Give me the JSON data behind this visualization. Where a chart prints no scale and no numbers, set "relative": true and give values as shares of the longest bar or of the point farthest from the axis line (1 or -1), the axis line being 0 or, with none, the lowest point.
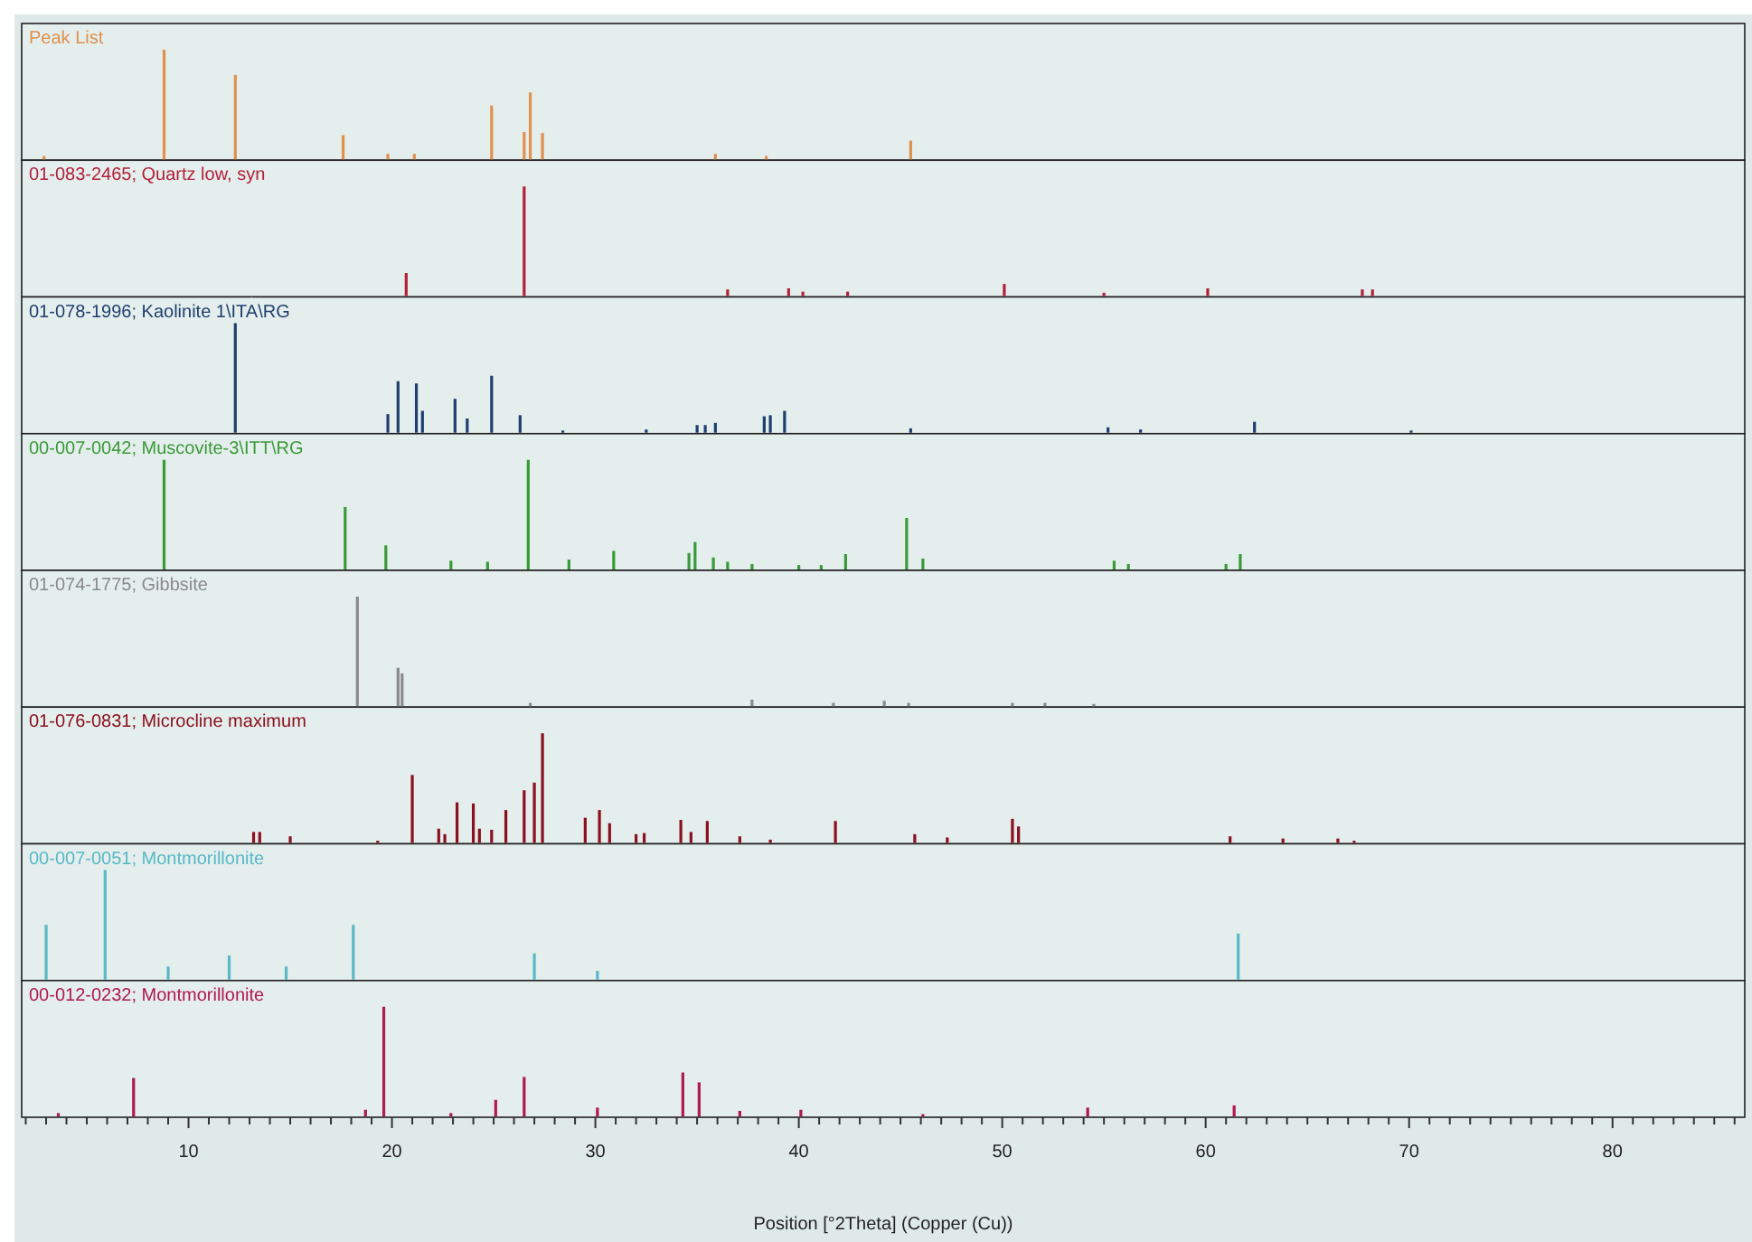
{
  "chart_data": [
    {
      "type": "bar",
      "title": "Peak List",
      "color": "#e0904f",
      "relative": true,
      "xlim": [
        1.8,
        86.5
      ],
      "tick_labels": false,
      "x": [
        2.9,
        8.8,
        12.3,
        17.6,
        19.8,
        21.1,
        24.9,
        26.5,
        26.8,
        27.4,
        35.9,
        38.4,
        45.5
      ],
      "values": [
        0.03,
        1.0,
        0.77,
        0.22,
        0.05,
        0.05,
        0.49,
        0.25,
        0.61,
        0.24,
        0.05,
        0.03,
        0.17
      ]
    },
    {
      "type": "bar",
      "title": "01-083-2465; Quartz low, syn",
      "color": "#b3203c",
      "relative": true,
      "xlim": [
        1.8,
        86.5
      ],
      "tick_labels": false,
      "x": [
        20.7,
        26.5,
        36.5,
        39.5,
        40.2,
        42.4,
        50.1,
        55.0,
        60.1,
        67.7,
        68.2
      ],
      "values": [
        0.21,
        1.0,
        0.06,
        0.07,
        0.04,
        0.04,
        0.11,
        0.03,
        0.07,
        0.06,
        0.06
      ]
    },
    {
      "type": "bar",
      "title": "01-078-1996; Kaolinite 1\\ITA\\RG",
      "color": "#1f3f70",
      "relative": true,
      "xlim": [
        1.8,
        86.5
      ],
      "tick_labels": false,
      "x": [
        12.3,
        19.8,
        20.3,
        21.2,
        21.5,
        23.1,
        23.7,
        24.9,
        26.3,
        28.4,
        32.5,
        35.0,
        35.4,
        35.9,
        38.3,
        38.6,
        39.3,
        45.5,
        55.2,
        56.8,
        62.4,
        70.1
      ],
      "values": [
        1.0,
        0.17,
        0.47,
        0.45,
        0.2,
        0.31,
        0.13,
        0.52,
        0.16,
        0.02,
        0.03,
        0.07,
        0.07,
        0.09,
        0.15,
        0.16,
        0.2,
        0.04,
        0.05,
        0.03,
        0.1,
        0.02
      ]
    },
    {
      "type": "bar",
      "title": "00-007-0042; Muscovite-3\\ITT\\RG",
      "color": "#3a9a3a",
      "relative": true,
      "xlim": [
        1.8,
        86.5
      ],
      "tick_labels": false,
      "x": [
        8.8,
        17.7,
        19.7,
        22.9,
        24.7,
        26.7,
        28.7,
        30.9,
        34.6,
        34.9,
        35.8,
        36.5,
        37.7,
        40.0,
        41.1,
        42.3,
        45.3,
        46.1,
        55.5,
        56.2,
        61.0,
        61.7
      ],
      "values": [
        1.0,
        0.57,
        0.22,
        0.08,
        0.07,
        1.0,
        0.09,
        0.17,
        0.15,
        0.25,
        0.11,
        0.07,
        0.05,
        0.04,
        0.04,
        0.14,
        0.47,
        0.1,
        0.08,
        0.05,
        0.05,
        0.14
      ]
    },
    {
      "type": "bar",
      "title": "01-074-1775; Gibbsite",
      "color": "#8a8a8a",
      "relative": true,
      "xlim": [
        1.8,
        86.5
      ],
      "tick_labels": false,
      "x": [
        18.3,
        20.3,
        20.5,
        26.8,
        37.7,
        41.7,
        44.2,
        45.4,
        50.5,
        52.1,
        54.5
      ],
      "values": [
        1.0,
        0.35,
        0.3,
        0.03,
        0.06,
        0.03,
        0.05,
        0.03,
        0.03,
        0.03,
        0.02
      ]
    },
    {
      "type": "bar",
      "title": "01-076-0831; Microcline maximum",
      "color": "#8b1020",
      "relative": true,
      "xlim": [
        1.8,
        86.5
      ],
      "tick_labels": false,
      "x": [
        13.2,
        13.5,
        15.0,
        19.3,
        21.0,
        22.3,
        22.6,
        23.2,
        24.0,
        24.3,
        24.9,
        25.6,
        26.5,
        27.0,
        27.4,
        29.5,
        30.2,
        30.7,
        32.0,
        32.4,
        34.2,
        34.7,
        35.5,
        37.1,
        38.6,
        41.8,
        45.7,
        47.3,
        50.5,
        50.8,
        61.2,
        63.8,
        66.5,
        67.3
      ],
      "values": [
        0.1,
        0.1,
        0.06,
        0.02,
        0.62,
        0.13,
        0.08,
        0.37,
        0.36,
        0.13,
        0.12,
        0.3,
        0.48,
        0.55,
        1.0,
        0.23,
        0.3,
        0.18,
        0.08,
        0.09,
        0.21,
        0.1,
        0.2,
        0.06,
        0.03,
        0.2,
        0.08,
        0.05,
        0.22,
        0.15,
        0.06,
        0.04,
        0.04,
        0.02
      ]
    },
    {
      "type": "bar",
      "title": "00-007-0051; Montmorillonite",
      "color": "#5ab8c8",
      "relative": true,
      "xlim": [
        1.8,
        86.5
      ],
      "tick_labels": false,
      "x": [
        3.0,
        5.9,
        9.0,
        12.0,
        14.8,
        18.1,
        27.0,
        30.1,
        61.6
      ],
      "values": [
        0.5,
        1.0,
        0.12,
        0.22,
        0.12,
        0.5,
        0.24,
        0.08,
        0.42
      ]
    },
    {
      "type": "bar",
      "title": "00-012-0232; Montmorillonite",
      "color": "#b01850",
      "relative": true,
      "xlim": [
        1.8,
        86.5
      ],
      "tick_labels": "x",
      "xlabel": "Position [°2Theta] (Copper (Cu))",
      "xticks": [
        {
          "value": 2,
          "label": null
        },
        {
          "value": 3,
          "label": null
        },
        {
          "value": 4,
          "label": null
        },
        {
          "value": 5,
          "label": null
        },
        {
          "value": 6,
          "label": null
        },
        {
          "value": 7,
          "label": null
        },
        {
          "value": 8,
          "label": null
        },
        {
          "value": 9,
          "label": null
        },
        10,
        {
          "value": 11,
          "label": null
        },
        {
          "value": 12,
          "label": null
        },
        {
          "value": 13,
          "label": null
        },
        {
          "value": 14,
          "label": null
        },
        {
          "value": 15,
          "label": null
        },
        {
          "value": 16,
          "label": null
        },
        {
          "value": 17,
          "label": null
        },
        {
          "value": 18,
          "label": null
        },
        {
          "value": 19,
          "label": null
        },
        20,
        {
          "value": 21,
          "label": null
        },
        {
          "value": 22,
          "label": null
        },
        {
          "value": 23,
          "label": null
        },
        {
          "value": 24,
          "label": null
        },
        {
          "value": 25,
          "label": null
        },
        {
          "value": 26,
          "label": null
        },
        {
          "value": 27,
          "label": null
        },
        {
          "value": 28,
          "label": null
        },
        {
          "value": 29,
          "label": null
        },
        30,
        {
          "value": 31,
          "label": null
        },
        {
          "value": 32,
          "label": null
        },
        {
          "value": 33,
          "label": null
        },
        {
          "value": 34,
          "label": null
        },
        {
          "value": 35,
          "label": null
        },
        {
          "value": 36,
          "label": null
        },
        {
          "value": 37,
          "label": null
        },
        {
          "value": 38,
          "label": null
        },
        {
          "value": 39,
          "label": null
        },
        40,
        {
          "value": 41,
          "label": null
        },
        {
          "value": 42,
          "label": null
        },
        {
          "value": 43,
          "label": null
        },
        {
          "value": 44,
          "label": null
        },
        {
          "value": 45,
          "label": null
        },
        {
          "value": 46,
          "label": null
        },
        {
          "value": 47,
          "label": null
        },
        {
          "value": 48,
          "label": null
        },
        {
          "value": 49,
          "label": null
        },
        50,
        {
          "value": 51,
          "label": null
        },
        {
          "value": 52,
          "label": null
        },
        {
          "value": 53,
          "label": null
        },
        {
          "value": 54,
          "label": null
        },
        {
          "value": 55,
          "label": null
        },
        {
          "value": 56,
          "label": null
        },
        {
          "value": 57,
          "label": null
        },
        {
          "value": 58,
          "label": null
        },
        {
          "value": 59,
          "label": null
        },
        60,
        {
          "value": 61,
          "label": null
        },
        {
          "value": 62,
          "label": null
        },
        {
          "value": 63,
          "label": null
        },
        {
          "value": 64,
          "label": null
        },
        {
          "value": 65,
          "label": null
        },
        {
          "value": 66,
          "label": null
        },
        {
          "value": 67,
          "label": null
        },
        {
          "value": 68,
          "label": null
        },
        {
          "value": 69,
          "label": null
        },
        70,
        {
          "value": 71,
          "label": null
        },
        {
          "value": 72,
          "label": null
        },
        {
          "value": 73,
          "label": null
        },
        {
          "value": 74,
          "label": null
        },
        {
          "value": 75,
          "label": null
        },
        {
          "value": 76,
          "label": null
        },
        {
          "value": 77,
          "label": null
        },
        {
          "value": 78,
          "label": null
        },
        {
          "value": 79,
          "label": null
        },
        80,
        {
          "value": 81,
          "label": null
        },
        {
          "value": 82,
          "label": null
        },
        {
          "value": 83,
          "label": null
        },
        {
          "value": 84,
          "label": null
        },
        {
          "value": 85,
          "label": null
        },
        {
          "value": 86,
          "label": null
        }
      ],
      "x": [
        3.6,
        7.3,
        18.7,
        19.6,
        22.9,
        25.1,
        26.5,
        30.1,
        34.3,
        35.1,
        37.1,
        40.1,
        46.1,
        54.2,
        61.4
      ],
      "values": [
        0.03,
        0.35,
        0.06,
        1.0,
        0.03,
        0.15,
        0.36,
        0.08,
        0.4,
        0.31,
        0.05,
        0.06,
        0.02,
        0.08,
        0.1
      ]
    }
  ]
}
